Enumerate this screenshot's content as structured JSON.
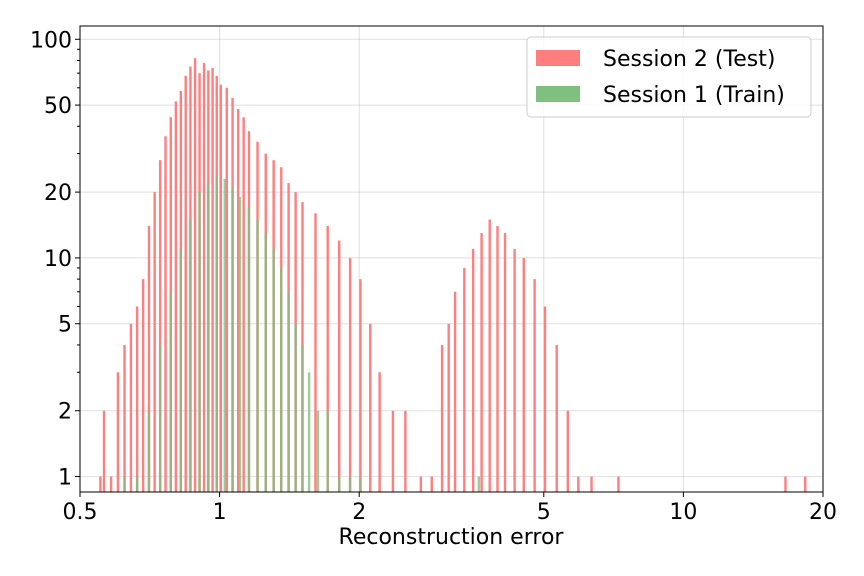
{
  "chart_data": {
    "type": "histogram",
    "x_scale": "log",
    "y_scale": "log",
    "xlim": [
      0.5,
      20
    ],
    "ylim": [
      0.85,
      115
    ],
    "xlabel": "Reconstruction error",
    "ylabel": "",
    "x_ticks": [
      {
        "value": 0.5,
        "label": "0.5"
      },
      {
        "value": 1,
        "label": "1"
      },
      {
        "value": 2,
        "label": "2"
      },
      {
        "value": 5,
        "label": "5"
      },
      {
        "value": 10,
        "label": "10"
      },
      {
        "value": 20,
        "label": "20"
      }
    ],
    "y_ticks": [
      {
        "value": 1,
        "label": "1"
      },
      {
        "value": 2,
        "label": "2"
      },
      {
        "value": 5,
        "label": "5"
      },
      {
        "value": 10,
        "label": "10"
      },
      {
        "value": 20,
        "label": "20"
      },
      {
        "value": 50,
        "label": "50"
      },
      {
        "value": 100,
        "label": "100"
      }
    ],
    "grid": true,
    "legend_position": "top-right",
    "series": [
      {
        "name": "Session 2 (Test)",
        "color": "#ff7f7f",
        "bins": [
          [
            0.55,
            1
          ],
          [
            0.56,
            2
          ],
          [
            0.58,
            1
          ],
          [
            0.6,
            3
          ],
          [
            0.62,
            4
          ],
          [
            0.64,
            5
          ],
          [
            0.66,
            6
          ],
          [
            0.68,
            8
          ],
          [
            0.7,
            14
          ],
          [
            0.72,
            20
          ],
          [
            0.74,
            28
          ],
          [
            0.76,
            36
          ],
          [
            0.78,
            44
          ],
          [
            0.8,
            52
          ],
          [
            0.82,
            58
          ],
          [
            0.84,
            68
          ],
          [
            0.86,
            75
          ],
          [
            0.88,
            82
          ],
          [
            0.9,
            70
          ],
          [
            0.92,
            78
          ],
          [
            0.94,
            72
          ],
          [
            0.96,
            74
          ],
          [
            0.98,
            68
          ],
          [
            1.0,
            62
          ],
          [
            1.03,
            60
          ],
          [
            1.06,
            54
          ],
          [
            1.09,
            48
          ],
          [
            1.12,
            44
          ],
          [
            1.15,
            38
          ],
          [
            1.2,
            34
          ],
          [
            1.25,
            30
          ],
          [
            1.3,
            28
          ],
          [
            1.35,
            26
          ],
          [
            1.4,
            22
          ],
          [
            1.45,
            20
          ],
          [
            1.5,
            18
          ],
          [
            1.6,
            16
          ],
          [
            1.7,
            14
          ],
          [
            1.8,
            12
          ],
          [
            1.9,
            10
          ],
          [
            2.0,
            8
          ],
          [
            2.1,
            5
          ],
          [
            2.2,
            3
          ],
          [
            2.35,
            2
          ],
          [
            2.5,
            2
          ],
          [
            2.7,
            1
          ],
          [
            2.85,
            1
          ],
          [
            3.0,
            4
          ],
          [
            3.1,
            5
          ],
          [
            3.2,
            7
          ],
          [
            3.35,
            9
          ],
          [
            3.5,
            11
          ],
          [
            3.65,
            13
          ],
          [
            3.8,
            15
          ],
          [
            3.95,
            14
          ],
          [
            4.1,
            13
          ],
          [
            4.3,
            11
          ],
          [
            4.5,
            10
          ],
          [
            4.75,
            8
          ],
          [
            5.0,
            6
          ],
          [
            5.3,
            4
          ],
          [
            5.6,
            2
          ],
          [
            5.9,
            1
          ],
          [
            6.3,
            1
          ],
          [
            7.2,
            1
          ],
          [
            16.5,
            1
          ],
          [
            18.2,
            1
          ]
        ]
      },
      {
        "name": "Session 1 (Train)",
        "color": "#7fbf7f",
        "bins": [
          [
            0.62,
            1
          ],
          [
            0.66,
            1
          ],
          [
            0.7,
            2
          ],
          [
            0.74,
            4
          ],
          [
            0.78,
            7
          ],
          [
            0.82,
            11
          ],
          [
            0.86,
            15
          ],
          [
            0.9,
            20
          ],
          [
            0.94,
            22
          ],
          [
            0.98,
            24
          ],
          [
            1.02,
            23
          ],
          [
            1.06,
            21
          ],
          [
            1.1,
            19
          ],
          [
            1.15,
            17
          ],
          [
            1.2,
            15
          ],
          [
            1.25,
            13
          ],
          [
            1.3,
            11
          ],
          [
            1.35,
            9
          ],
          [
            1.4,
            7
          ],
          [
            1.45,
            5
          ],
          [
            1.5,
            4
          ],
          [
            1.55,
            3
          ],
          [
            1.62,
            2
          ],
          [
            1.7,
            2
          ],
          [
            1.8,
            1
          ],
          [
            1.9,
            1
          ],
          [
            2.0,
            1
          ],
          [
            3.6,
            1
          ]
        ]
      }
    ]
  }
}
